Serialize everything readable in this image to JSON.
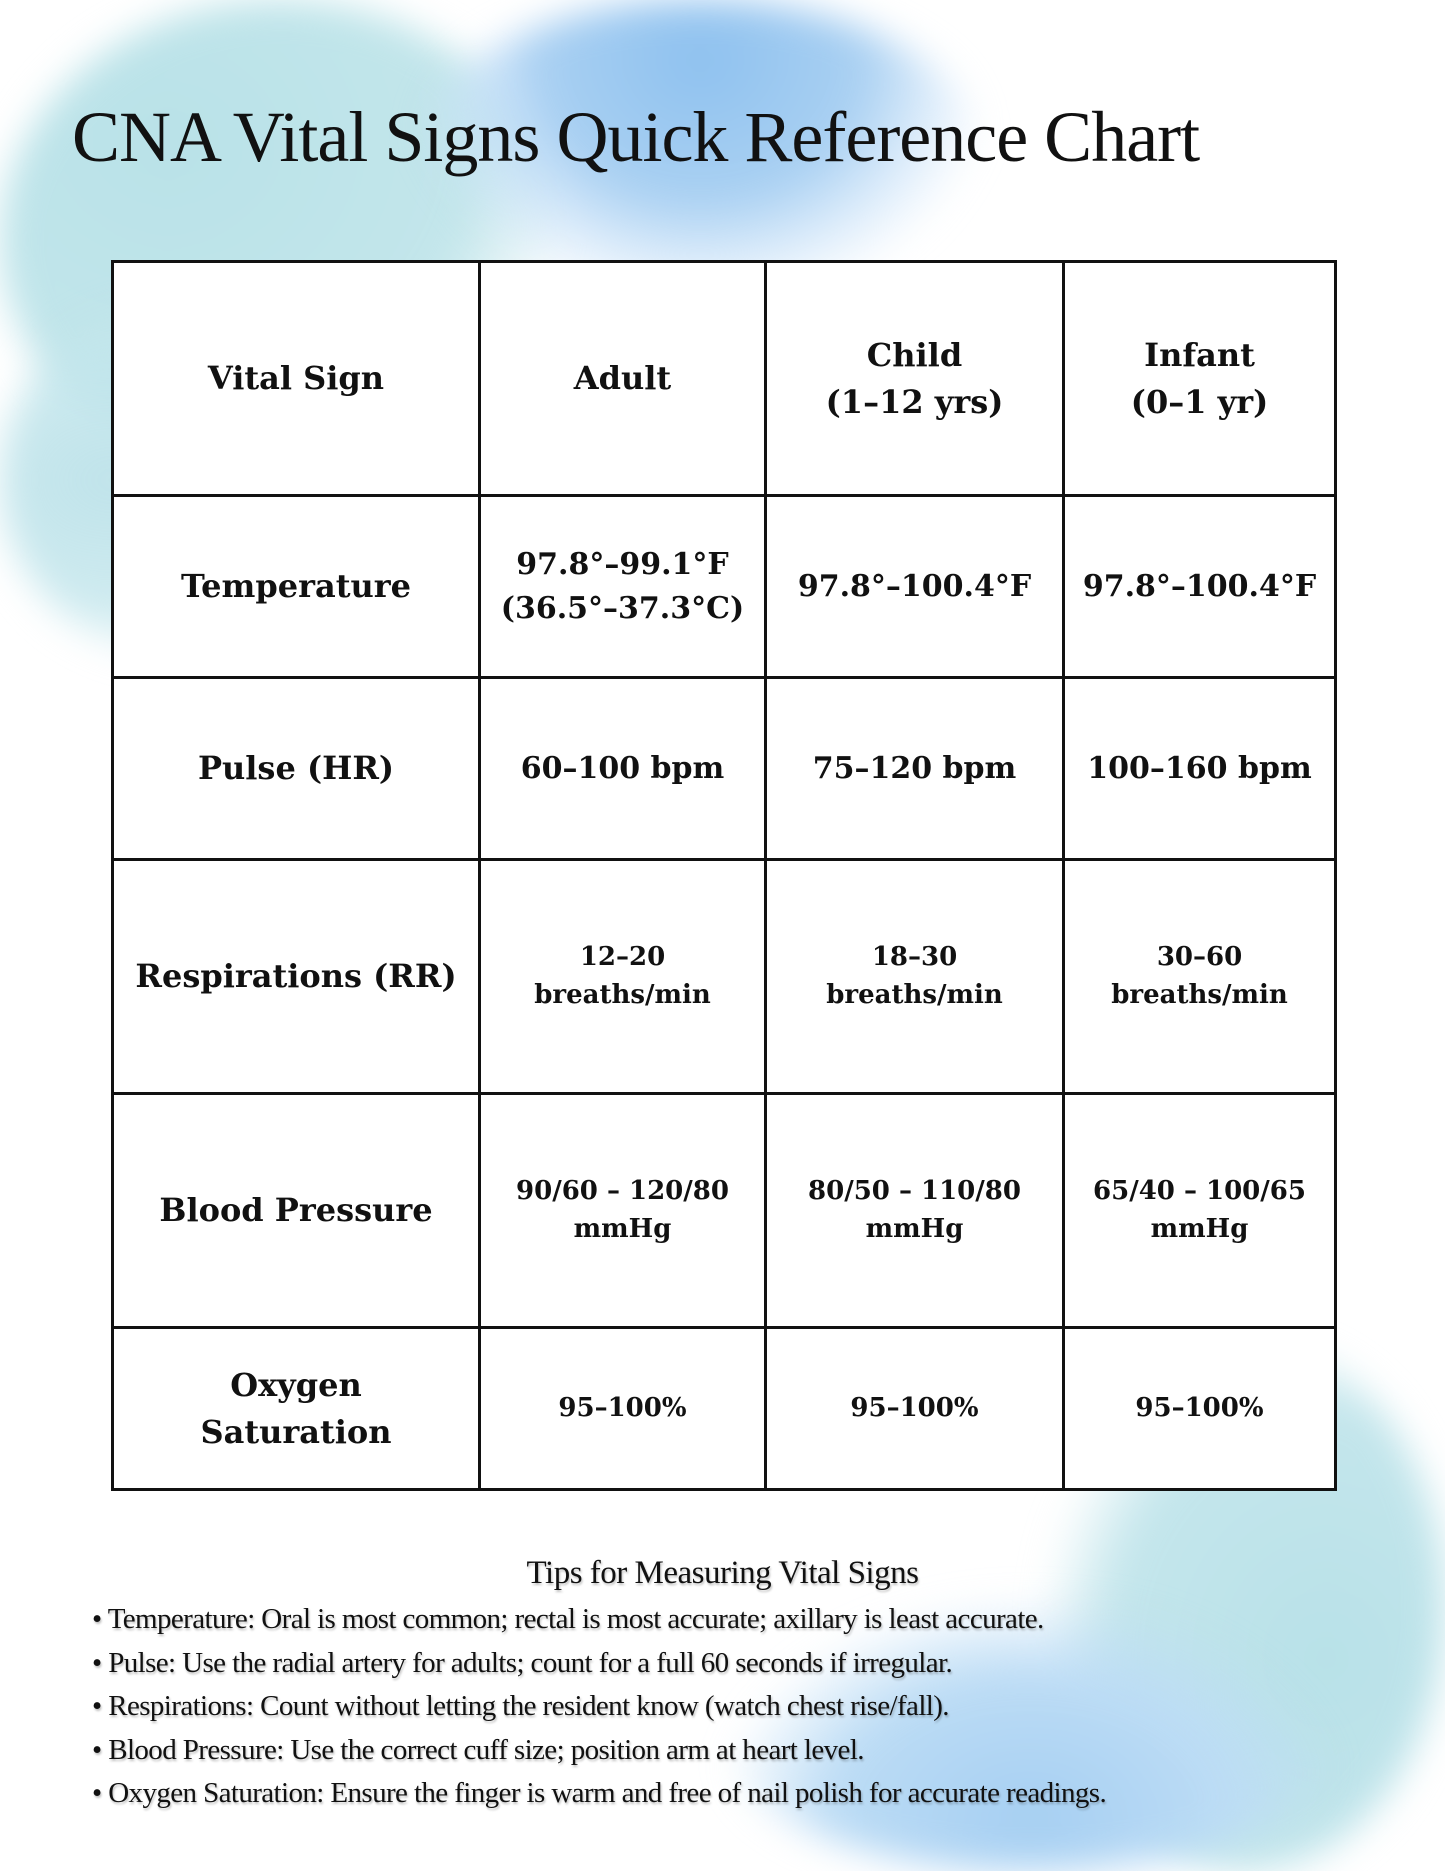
{
  "title": "CNA Vital Signs Quick Reference Chart",
  "table": {
    "headers": [
      {
        "line1": "Vital Sign",
        "line2": ""
      },
      {
        "line1": "Adult",
        "line2": ""
      },
      {
        "line1": "Child",
        "line2": "(1–12 yrs)"
      },
      {
        "line1": "Infant",
        "line2": "(0–1 yr)"
      }
    ],
    "rows": [
      {
        "sign": [
          "Temperature",
          ""
        ],
        "adult": [
          "97.8°–99.1°F",
          "(36.5°–37.3°C)"
        ],
        "child": [
          "97.8°–100.4°F",
          ""
        ],
        "infant": [
          "97.8°–100.4°F",
          ""
        ]
      },
      {
        "sign": [
          "Pulse (HR)",
          ""
        ],
        "adult": [
          "60–100 bpm",
          ""
        ],
        "child": [
          "75–120 bpm",
          ""
        ],
        "infant": [
          "100–160 bpm",
          ""
        ]
      },
      {
        "sign": [
          "Respirations (RR)",
          ""
        ],
        "adult": [
          "12–20",
          "breaths/min"
        ],
        "child": [
          "18–30",
          "breaths/min"
        ],
        "infant": [
          "30–60",
          "breaths/min"
        ]
      },
      {
        "sign": [
          "Blood Pressure",
          ""
        ],
        "adult": [
          "90/60 – 120/80",
          "mmHg"
        ],
        "child": [
          "80/50 – 110/80",
          "mmHg"
        ],
        "infant": [
          "65/40 – 100/65",
          "mmHg"
        ]
      },
      {
        "sign": [
          "Oxygen",
          "Saturation"
        ],
        "adult": [
          "95–100%",
          ""
        ],
        "child": [
          "95–100%",
          ""
        ],
        "infant": [
          "95–100%",
          ""
        ]
      }
    ]
  },
  "tips": {
    "heading": "Tips for Measuring Vital Signs",
    "items": [
      "Temperature: Oral is most common; rectal is most accurate; axillary is least accurate.",
      "Pulse: Use the radial artery for adults; count for a full 60 seconds if irregular.",
      "Respirations: Count without letting the resident know (watch chest rise/fall).",
      "Blood Pressure: Use the correct cuff size; position arm at heart level.",
      "Oxygen Saturation: Ensure the finger is warm and free of nail polish for accurate readings."
    ]
  },
  "colors": {
    "watercolor_teal": "#b9e2e8",
    "watercolor_blue": "#8ec1ef",
    "text": "#111111"
  }
}
